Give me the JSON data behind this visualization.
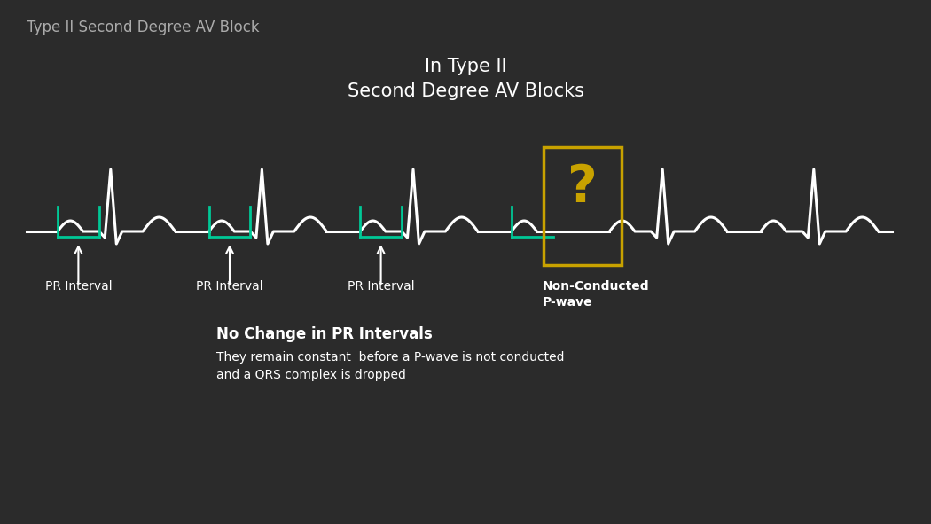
{
  "bg_color": "#2b2b2b",
  "ecg_color": "#ffffff",
  "green_color": "#00c896",
  "gold_color": "#c8a200",
  "gold_box_color": "#c8a200",
  "title_top_left": "Type II Second Degree AV Block",
  "title_center_line1": "In Type II",
  "title_center_line2": "Second Degree AV Blocks",
  "label_pr1": "PR Interval",
  "label_pr2": "PR Interval",
  "label_pr3": "PR Interval",
  "label_non_conducted_line1": "Non-Conducted",
  "label_non_conducted_line2": "P-wave",
  "bold_text": "No Change in PR Intervals",
  "body_text_line1": "They remain constant  before a P-wave is not conducted",
  "body_text_line2": "and a QRS complex is dropped",
  "question_mark": "?",
  "ecg_lw": 2.2,
  "green_lw": 2.0,
  "fig_width": 10.5,
  "fig_height": 5.91
}
